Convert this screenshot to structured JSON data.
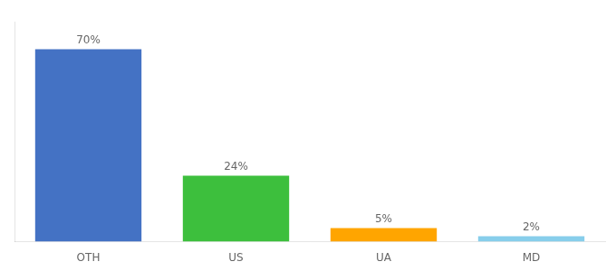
{
  "chart_data": {
    "type": "bar",
    "categories": [
      "OTH",
      "US",
      "UA",
      "MD"
    ],
    "values": [
      70,
      24,
      5,
      2
    ],
    "value_labels": [
      "70%",
      "24%",
      "5%",
      "2%"
    ],
    "data_labels": true,
    "colors": [
      "#4472C4",
      "#3DBF3D",
      "#FFA500",
      "#87CEEB"
    ],
    "ylim": [
      0,
      80
    ],
    "grid": false,
    "tick_labels": "x"
  }
}
